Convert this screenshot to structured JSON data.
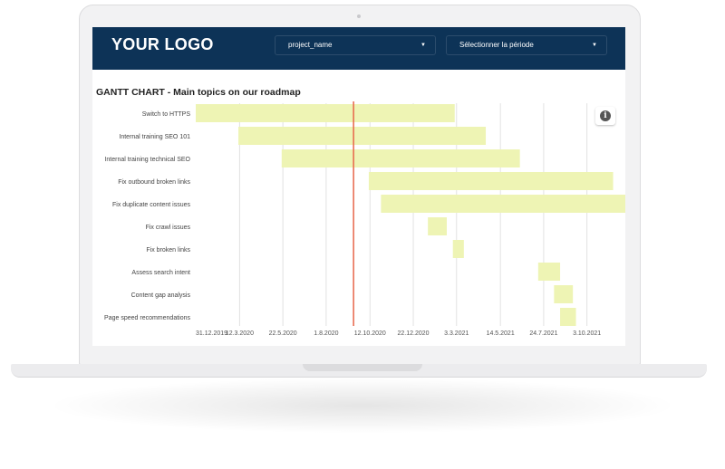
{
  "header": {
    "logo": "YOUR LOGO",
    "filter_project": "project_name",
    "filter_period": "Sélectionner la période"
  },
  "chart_title": "GANTT CHART - Main topics on our roadmap",
  "colors": {
    "header_bg": "#0d3357",
    "bar": "#eef4b4",
    "today_line": "#e8664a"
  },
  "icons": {
    "info": "info-icon",
    "dropdown": "caret-down-icon"
  },
  "chart_data": {
    "type": "gantt",
    "title": "GANTT CHART - Main topics on our roadmap",
    "xlim": [
      "2019-12-31",
      "2021-12-05"
    ],
    "x_ticks": [
      "31.12.2019",
      "12.3.2020",
      "22.5.2020",
      "1.8.2020",
      "12.10.2020",
      "22.12.2020",
      "3.3.2021",
      "14.5.2021",
      "24.7.2021",
      "3.10.2021"
    ],
    "today": "2020-09-15",
    "grid": true,
    "tasks": [
      {
        "name": "Switch to HTTPS",
        "start": "2019-12-31",
        "end": "2021-02-28"
      },
      {
        "name": "Internal training SEO 101",
        "start": "2020-03-10",
        "end": "2021-04-20"
      },
      {
        "name": "Internal training technical SEO",
        "start": "2020-05-20",
        "end": "2021-06-15"
      },
      {
        "name": "Fix outbound broken links",
        "start": "2020-10-10",
        "end": "2021-11-15"
      },
      {
        "name": "Fix duplicate content issues",
        "start": "2020-10-30",
        "end": "2021-12-05"
      },
      {
        "name": "Fix crawl issues",
        "start": "2021-01-15",
        "end": "2021-02-15"
      },
      {
        "name": "Fix broken links",
        "start": "2021-02-25",
        "end": "2021-03-15"
      },
      {
        "name": "Assess search intent",
        "start": "2021-07-15",
        "end": "2021-08-20"
      },
      {
        "name": "Content gap analysis",
        "start": "2021-08-10",
        "end": "2021-09-10"
      },
      {
        "name": "Page speed recommendations",
        "start": "2021-08-20",
        "end": "2021-09-15"
      }
    ]
  }
}
